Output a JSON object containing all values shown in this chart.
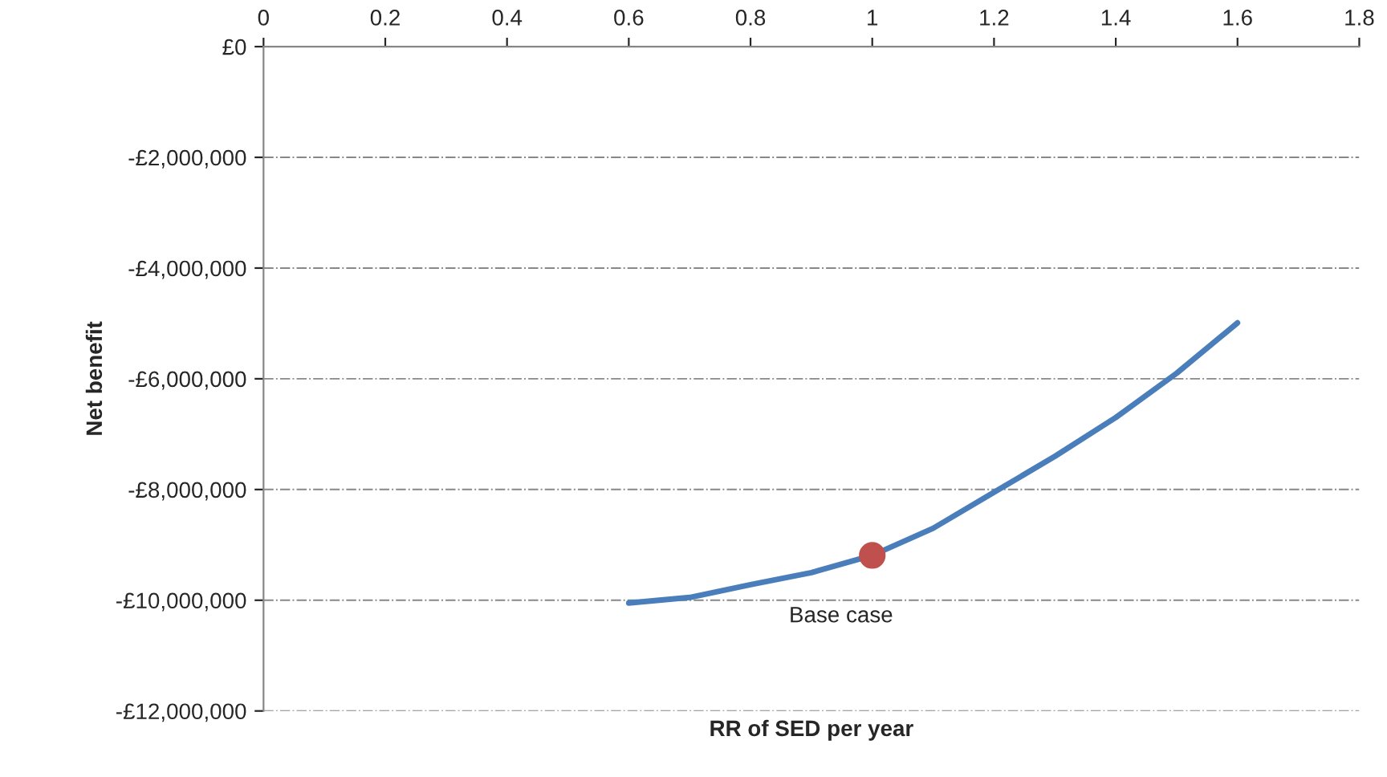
{
  "chart_data": {
    "type": "line",
    "xlabel": "RR of SED per year",
    "ylabel": "Net benefit",
    "xlim": [
      0,
      1.8
    ],
    "xticks": [
      0,
      0.2,
      0.4,
      0.6,
      0.8,
      1,
      1.2,
      1.4,
      1.6,
      1.8
    ],
    "ylim": [
      -12000000,
      0
    ],
    "yticks": [
      {
        "value": 0,
        "label": "£0"
      },
      {
        "value": -2000000,
        "label": "-£2,000,000"
      },
      {
        "value": -4000000,
        "label": "-£4,000,000"
      },
      {
        "value": -6000000,
        "label": "-£6,000,000"
      },
      {
        "value": -8000000,
        "label": "-£8,000,000"
      },
      {
        "value": -10000000,
        "label": "-£10,000,000"
      },
      {
        "value": -12000000,
        "label": "-£12,000,000"
      }
    ],
    "grid": "y",
    "series": [
      {
        "color": "#4a7ebb",
        "x": [
          0.6,
          0.7,
          0.8,
          0.9,
          1.0,
          1.1,
          1.2,
          1.3,
          1.4,
          1.5,
          1.6
        ],
        "values": [
          -10050000,
          -9950000,
          -9720000,
          -9500000,
          -9190000,
          -8700000,
          -8050000,
          -7400000,
          -6700000,
          -5900000,
          -4990000
        ]
      },
      {
        "type": "scatter",
        "color": "#c0504d",
        "x": [
          1.0
        ],
        "values": [
          -9190000
        ]
      }
    ],
    "annotations": [
      {
        "text": "Base case",
        "x": 1.0,
        "y": -9190000
      }
    ]
  }
}
